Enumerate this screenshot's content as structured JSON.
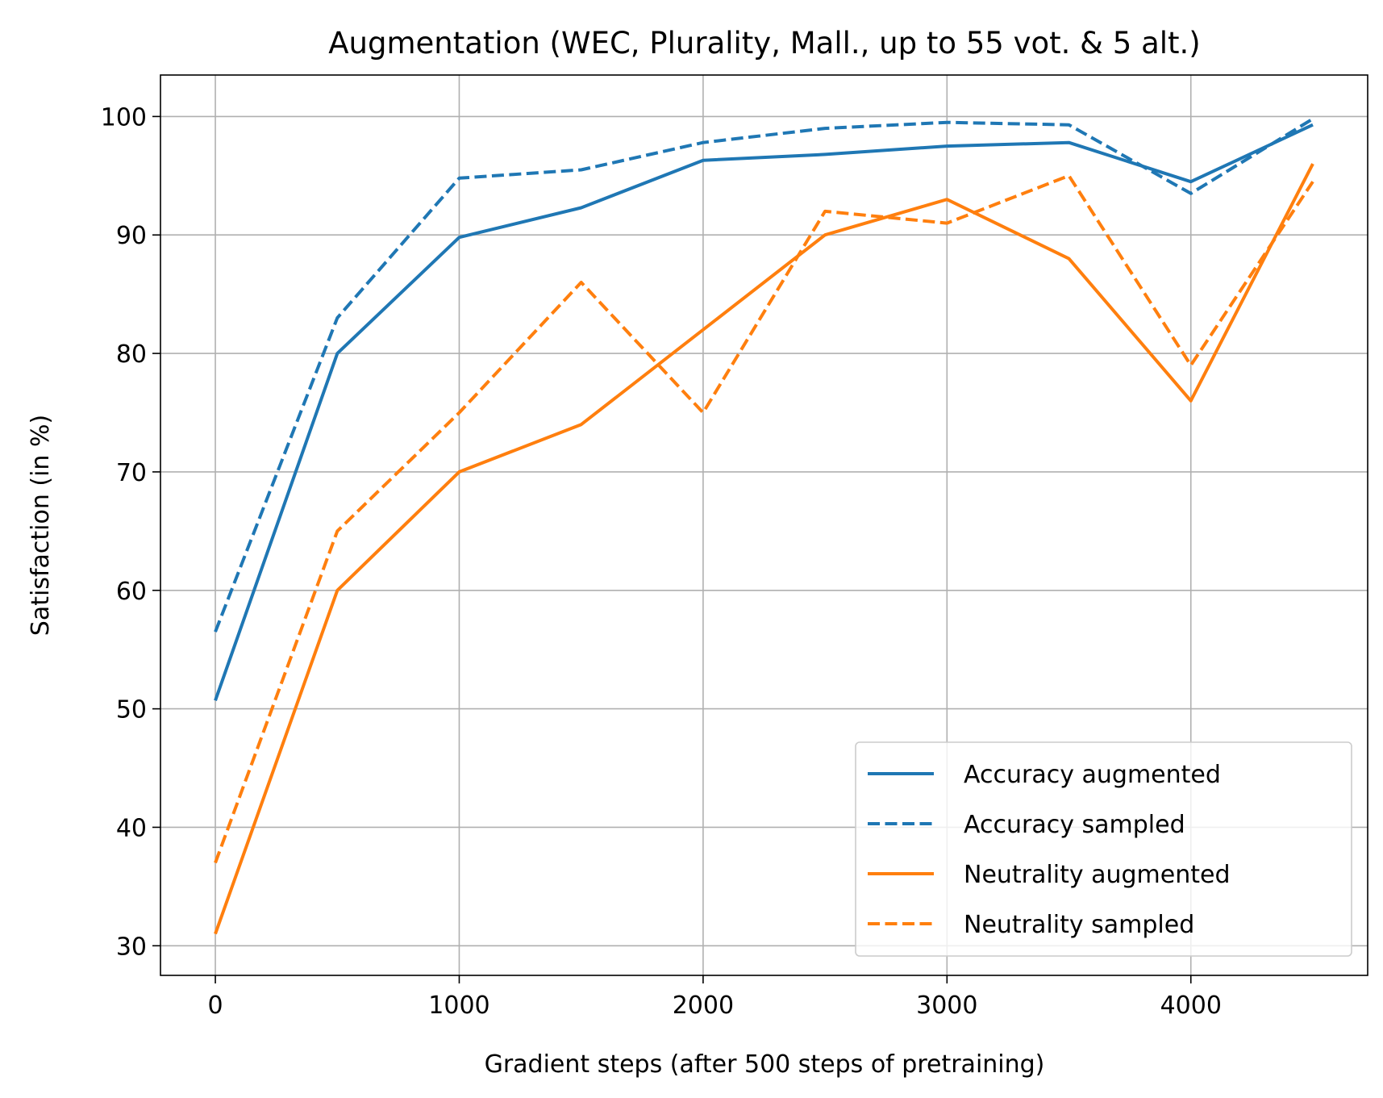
{
  "chart_data": {
    "type": "line",
    "title": "Augmentation (WEC, Plurality, Mall., up to 55 vot. & 5 alt.)",
    "xlabel": "Gradient steps (after 500 steps of pretraining)",
    "ylabel": "Satisfaction (in %)",
    "x": [
      0,
      500,
      1000,
      1500,
      2000,
      2500,
      3000,
      3500,
      4000,
      4500
    ],
    "xlim": [
      -225,
      4725
    ],
    "ylim": [
      27.5,
      103.5
    ],
    "xticks": [
      0,
      1000,
      2000,
      3000,
      4000
    ],
    "yticks": [
      30,
      40,
      50,
      60,
      70,
      80,
      90,
      100
    ],
    "grid": true,
    "legend_position": "bottom-right",
    "series": [
      {
        "name": "Accuracy augmented",
        "color": "#1f77b4",
        "dashed": false,
        "values": [
          50.7,
          80.0,
          89.8,
          92.3,
          96.3,
          96.8,
          97.5,
          97.8,
          94.5,
          99.3
        ]
      },
      {
        "name": "Accuracy sampled",
        "color": "#1f77b4",
        "dashed": true,
        "values": [
          56.5,
          83.0,
          94.8,
          95.5,
          97.8,
          99.0,
          99.5,
          99.3,
          93.5,
          99.8
        ]
      },
      {
        "name": "Neutrality augmented",
        "color": "#ff7f0e",
        "dashed": false,
        "values": [
          31.0,
          60.0,
          70.0,
          74.0,
          82.0,
          90.0,
          93.0,
          88.0,
          76.0,
          96.0
        ]
      },
      {
        "name": "Neutrality sampled",
        "color": "#ff7f0e",
        "dashed": true,
        "values": [
          37.0,
          65.0,
          75.0,
          86.0,
          75.0,
          92.0,
          91.0,
          95.0,
          79.0,
          94.5
        ]
      }
    ]
  }
}
